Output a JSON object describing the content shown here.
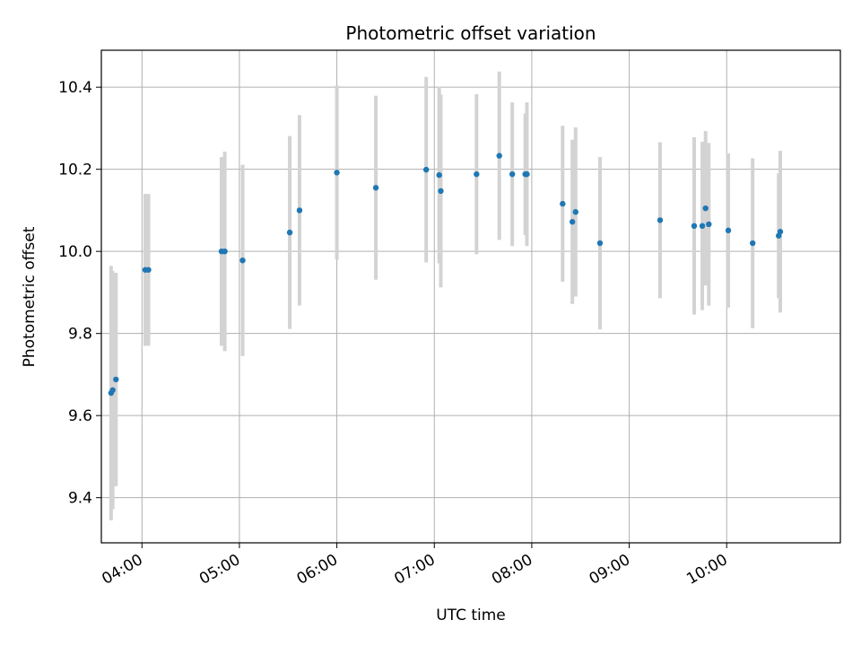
{
  "chart_data": {
    "type": "scatter",
    "title": "Photometric offset variation",
    "xlabel": "UTC time",
    "ylabel": "Photometric offset",
    "xlim": [
      "03:35",
      "11:10"
    ],
    "ylim": [
      9.29,
      10.49
    ],
    "x_ticks": [
      "04:00",
      "05:00",
      "06:00",
      "07:00",
      "08:00",
      "09:00",
      "10:00"
    ],
    "y_ticks": [
      9.4,
      9.6,
      9.8,
      10.0,
      10.2,
      10.4
    ],
    "grid": true,
    "colors": {
      "point": "#1f77b4",
      "error_bar": "#d3d3d3",
      "grid": "#b0b0b0"
    },
    "points": [
      {
        "x": "03:41",
        "y": 9.655,
        "yerr": 0.31
      },
      {
        "x": "03:42",
        "y": 9.662,
        "yerr": 0.29
      },
      {
        "x": "03:44",
        "y": 9.688,
        "yerr": 0.26
      },
      {
        "x": "04:02",
        "y": 9.955,
        "yerr": 0.185
      },
      {
        "x": "04:04",
        "y": 9.955,
        "yerr": 0.185
      },
      {
        "x": "04:49",
        "y": 10.0,
        "yerr": 0.23
      },
      {
        "x": "04:51",
        "y": 10.0,
        "yerr": 0.243
      },
      {
        "x": "05:02",
        "y": 9.978,
        "yerr": 0.233
      },
      {
        "x": "05:31",
        "y": 10.046,
        "yerr": 0.235
      },
      {
        "x": "05:37",
        "y": 10.1,
        "yerr": 0.232
      },
      {
        "x": "06:00",
        "y": 10.192,
        "yerr": 0.212
      },
      {
        "x": "06:24",
        "y": 10.155,
        "yerr": 0.224
      },
      {
        "x": "06:55",
        "y": 10.199,
        "yerr": 0.226
      },
      {
        "x": "07:03",
        "y": 10.186,
        "yerr": 0.215
      },
      {
        "x": "07:04",
        "y": 10.147,
        "yerr": 0.235
      },
      {
        "x": "07:26",
        "y": 10.188,
        "yerr": 0.195
      },
      {
        "x": "07:40",
        "y": 10.233,
        "yerr": 0.205
      },
      {
        "x": "07:48",
        "y": 10.188,
        "yerr": 0.175
      },
      {
        "x": "07:56",
        "y": 10.188,
        "yerr": 0.148
      },
      {
        "x": "07:57",
        "y": 10.188,
        "yerr": 0.175
      },
      {
        "x": "08:19",
        "y": 10.116,
        "yerr": 0.19
      },
      {
        "x": "08:25",
        "y": 10.072,
        "yerr": 0.2
      },
      {
        "x": "08:27",
        "y": 10.096,
        "yerr": 0.206
      },
      {
        "x": "08:42",
        "y": 10.02,
        "yerr": 0.21
      },
      {
        "x": "09:19",
        "y": 10.076,
        "yerr": 0.19
      },
      {
        "x": "09:40",
        "y": 10.062,
        "yerr": 0.216
      },
      {
        "x": "09:45",
        "y": 10.062,
        "yerr": 0.205
      },
      {
        "x": "09:47",
        "y": 10.105,
        "yerr": 0.188
      },
      {
        "x": "09:49",
        "y": 10.066,
        "yerr": 0.198
      },
      {
        "x": "10:01",
        "y": 10.051,
        "yerr": 0.188
      },
      {
        "x": "10:16",
        "y": 10.02,
        "yerr": 0.207
      },
      {
        "x": "10:32",
        "y": 10.038,
        "yerr": 0.152
      },
      {
        "x": "10:33",
        "y": 10.048,
        "yerr": 0.197
      }
    ]
  }
}
